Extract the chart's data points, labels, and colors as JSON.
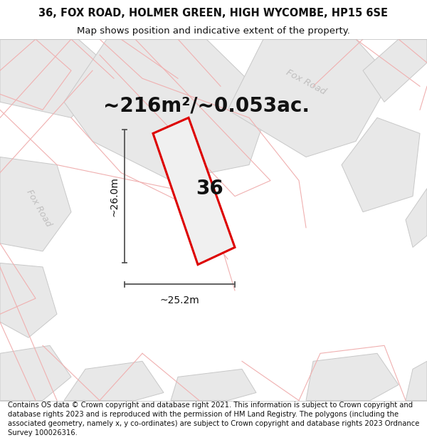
{
  "title_line1": "36, FOX ROAD, HOLMER GREEN, HIGH WYCOMBE, HP15 6SE",
  "title_line2": "Map shows position and indicative extent of the property.",
  "area_label": "~216m²/~0.053ac.",
  "property_number": "36",
  "dim_width": "~25.2m",
  "dim_height": "~26.0m",
  "footer_text": "Contains OS data © Crown copyright and database right 2021. This information is subject to Crown copyright and database rights 2023 and is reproduced with the permission of HM Land Registry. The polygons (including the associated geometry, namely x, y co-ordinates) are subject to Crown copyright and database rights 2023 Ordnance Survey 100026316.",
  "bg_color": "#f2f2f2",
  "map_bg": "#f2f2f2",
  "block_fill": "#e8e8e8",
  "block_edge_gray": "#c8c8c8",
  "road_line_color": "#f0b0b0",
  "property_fill": "#eeeeee",
  "property_edge": "#dd0000",
  "dim_line_color": "#555555",
  "text_color": "#111111",
  "road_label_color": "#c0bfbf",
  "title_fontsize": 10.5,
  "subtitle_fontsize": 9.5,
  "area_fontsize": 20,
  "property_num_fontsize": 20,
  "dim_fontsize": 10,
  "footer_fontsize": 7.2
}
